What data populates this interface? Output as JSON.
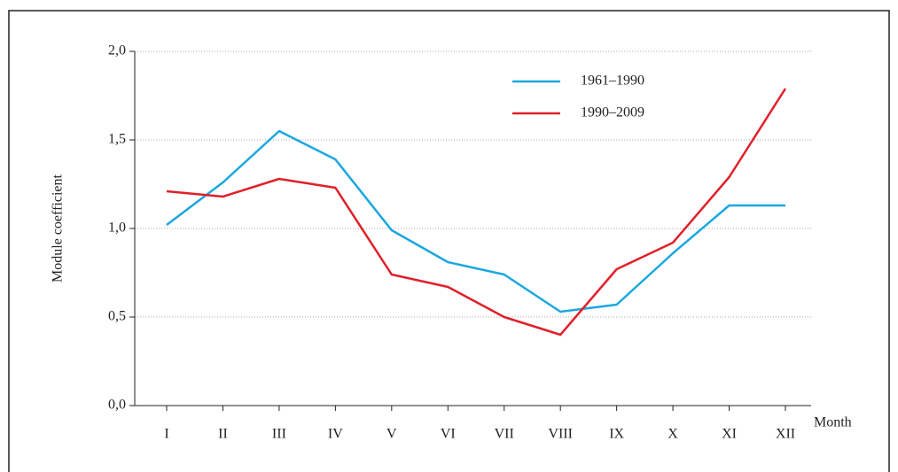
{
  "chart_data": {
    "type": "line",
    "y_label": "Module coefficient",
    "x_label": "Month",
    "categories": [
      "I",
      "II",
      "III",
      "IV",
      "V",
      "VI",
      "VII",
      "VIII",
      "IX",
      "X",
      "XI",
      "XII"
    ],
    "series": [
      {
        "name": "1961–1990",
        "color": "#1aa7e0",
        "values": [
          1.02,
          1.26,
          1.55,
          1.39,
          0.99,
          0.81,
          0.74,
          0.53,
          0.57,
          0.86,
          1.13,
          1.13
        ]
      },
      {
        "name": "1990–2009",
        "color": "#e0202a",
        "values": [
          1.21,
          1.18,
          1.28,
          1.23,
          0.74,
          0.67,
          0.5,
          0.4,
          0.77,
          0.92,
          1.29,
          1.79
        ]
      }
    ],
    "ylim": [
      0,
      2
    ],
    "yticks": [
      {
        "value": 0,
        "label": "0,0"
      },
      {
        "value": 0.5,
        "label": "0,5"
      },
      {
        "value": 1,
        "label": "1,0"
      },
      {
        "value": 1.5,
        "label": "1,5"
      },
      {
        "value": 2,
        "label": "2,0"
      }
    ],
    "grid": true
  }
}
